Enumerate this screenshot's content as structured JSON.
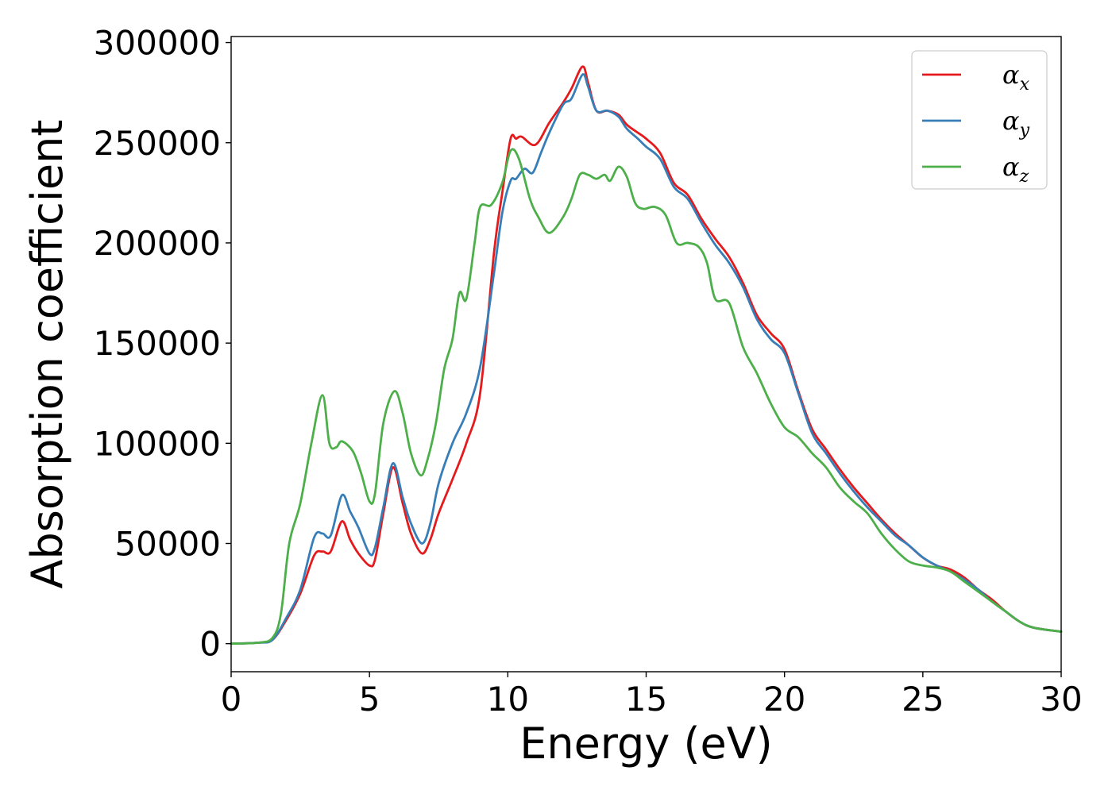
{
  "chart_data": {
    "type": "line",
    "title": "",
    "xlabel": "Energy (eV)",
    "ylabel": "Absorption coefficient",
    "xlim": [
      0,
      30
    ],
    "ylim": [
      -14000,
      303000
    ],
    "xticks": [
      0,
      5,
      10,
      15,
      20,
      25,
      30
    ],
    "yticks": [
      0,
      50000,
      100000,
      150000,
      200000,
      250000,
      300000
    ],
    "grid": false,
    "legend_position": "top-right",
    "series": [
      {
        "name": "α",
        "subscript": "x",
        "color": "#e41a1c",
        "points": [
          [
            0,
            0
          ],
          [
            1.0,
            500
          ],
          [
            1.5,
            2000
          ],
          [
            2.0,
            12000
          ],
          [
            2.5,
            25000
          ],
          [
            3.0,
            44000
          ],
          [
            3.3,
            46000
          ],
          [
            3.6,
            46000
          ],
          [
            4.0,
            61000
          ],
          [
            4.3,
            52000
          ],
          [
            4.6,
            45000
          ],
          [
            5.0,
            39000
          ],
          [
            5.2,
            42000
          ],
          [
            5.5,
            65000
          ],
          [
            5.85,
            88000
          ],
          [
            6.2,
            70000
          ],
          [
            6.5,
            55000
          ],
          [
            6.9,
            45000
          ],
          [
            7.2,
            52000
          ],
          [
            7.5,
            65000
          ],
          [
            8.0,
            82000
          ],
          [
            8.5,
            100000
          ],
          [
            9.0,
            125000
          ],
          [
            9.5,
            195000
          ],
          [
            9.8,
            225000
          ],
          [
            10.1,
            252000
          ],
          [
            10.3,
            252000
          ],
          [
            10.5,
            253000
          ],
          [
            11.0,
            249000
          ],
          [
            11.5,
            260000
          ],
          [
            12.0,
            270000
          ],
          [
            12.3,
            277000
          ],
          [
            12.7,
            288000
          ],
          [
            12.9,
            280000
          ],
          [
            13.2,
            266000
          ],
          [
            13.6,
            266000
          ],
          [
            14.0,
            264000
          ],
          [
            14.3,
            259000
          ],
          [
            14.7,
            255000
          ],
          [
            15.0,
            252000
          ],
          [
            15.5,
            245000
          ],
          [
            16.0,
            230000
          ],
          [
            16.5,
            224000
          ],
          [
            17.0,
            212000
          ],
          [
            17.5,
            202000
          ],
          [
            18.0,
            193000
          ],
          [
            18.5,
            180000
          ],
          [
            19.0,
            164000
          ],
          [
            19.5,
            155000
          ],
          [
            20.0,
            147000
          ],
          [
            20.5,
            126000
          ],
          [
            21.0,
            107000
          ],
          [
            21.5,
            97000
          ],
          [
            22.0,
            87000
          ],
          [
            22.5,
            78000
          ],
          [
            23.0,
            70000
          ],
          [
            23.5,
            62000
          ],
          [
            24.0,
            55000
          ],
          [
            24.5,
            49000
          ],
          [
            25.0,
            43000
          ],
          [
            25.5,
            39000
          ],
          [
            26.0,
            37000
          ],
          [
            26.5,
            33000
          ],
          [
            27.0,
            27000
          ],
          [
            27.5,
            22000
          ],
          [
            28.0,
            16000
          ],
          [
            28.5,
            11000
          ],
          [
            29.0,
            8000
          ],
          [
            30.0,
            6000
          ]
        ]
      },
      {
        "name": "α",
        "subscript": "y",
        "color": "#377eb8",
        "points": [
          [
            0,
            0
          ],
          [
            1.0,
            500
          ],
          [
            1.5,
            2000
          ],
          [
            2.0,
            13000
          ],
          [
            2.5,
            27000
          ],
          [
            3.0,
            53000
          ],
          [
            3.3,
            55000
          ],
          [
            3.6,
            54000
          ],
          [
            4.0,
            74000
          ],
          [
            4.3,
            66000
          ],
          [
            4.6,
            58000
          ],
          [
            5.0,
            45000
          ],
          [
            5.2,
            48000
          ],
          [
            5.5,
            68000
          ],
          [
            5.85,
            90000
          ],
          [
            6.2,
            73000
          ],
          [
            6.5,
            60000
          ],
          [
            6.9,
            50000
          ],
          [
            7.2,
            60000
          ],
          [
            7.5,
            80000
          ],
          [
            8.0,
            100000
          ],
          [
            8.5,
            115000
          ],
          [
            9.0,
            138000
          ],
          [
            9.5,
            185000
          ],
          [
            9.8,
            215000
          ],
          [
            10.1,
            231000
          ],
          [
            10.3,
            232000
          ],
          [
            10.6,
            237000
          ],
          [
            10.9,
            235000
          ],
          [
            11.2,
            245000
          ],
          [
            11.5,
            255000
          ],
          [
            12.0,
            269000
          ],
          [
            12.3,
            272000
          ],
          [
            12.7,
            284000
          ],
          [
            12.9,
            278000
          ],
          [
            13.2,
            266000
          ],
          [
            13.6,
            266000
          ],
          [
            14.0,
            263000
          ],
          [
            14.3,
            257000
          ],
          [
            14.7,
            252000
          ],
          [
            15.0,
            248000
          ],
          [
            15.5,
            242000
          ],
          [
            16.0,
            228000
          ],
          [
            16.5,
            222000
          ],
          [
            17.0,
            210000
          ],
          [
            17.5,
            199000
          ],
          [
            18.0,
            190000
          ],
          [
            18.5,
            178000
          ],
          [
            19.0,
            162000
          ],
          [
            19.5,
            152000
          ],
          [
            20.0,
            145000
          ],
          [
            20.5,
            125000
          ],
          [
            21.0,
            105000
          ],
          [
            21.5,
            95000
          ],
          [
            22.0,
            85000
          ],
          [
            22.5,
            76000
          ],
          [
            23.0,
            68000
          ],
          [
            23.5,
            61000
          ],
          [
            24.0,
            54000
          ],
          [
            24.5,
            49000
          ],
          [
            25.0,
            43000
          ],
          [
            25.5,
            39000
          ],
          [
            26.0,
            36000
          ],
          [
            26.5,
            32000
          ],
          [
            27.0,
            27000
          ],
          [
            27.5,
            21000
          ],
          [
            28.0,
            16000
          ],
          [
            28.5,
            11000
          ],
          [
            29.0,
            8000
          ],
          [
            30.0,
            6000
          ]
        ]
      },
      {
        "name": "α",
        "subscript": "z",
        "color": "#4daf4a",
        "points": [
          [
            0,
            0
          ],
          [
            1.0,
            500
          ],
          [
            1.5,
            3000
          ],
          [
            1.8,
            15000
          ],
          [
            2.1,
            50000
          ],
          [
            2.5,
            70000
          ],
          [
            2.9,
            100000
          ],
          [
            3.3,
            124000
          ],
          [
            3.55,
            100000
          ],
          [
            3.8,
            98000
          ],
          [
            4.0,
            101000
          ],
          [
            4.4,
            96000
          ],
          [
            4.7,
            85000
          ],
          [
            5.0,
            71000
          ],
          [
            5.2,
            75000
          ],
          [
            5.5,
            110000
          ],
          [
            5.9,
            126000
          ],
          [
            6.2,
            115000
          ],
          [
            6.5,
            95000
          ],
          [
            6.85,
            84000
          ],
          [
            7.1,
            92000
          ],
          [
            7.4,
            110000
          ],
          [
            7.7,
            137000
          ],
          [
            8.0,
            152000
          ],
          [
            8.25,
            175000
          ],
          [
            8.5,
            172000
          ],
          [
            8.8,
            200000
          ],
          [
            9.0,
            218000
          ],
          [
            9.4,
            219000
          ],
          [
            9.8,
            230000
          ],
          [
            10.1,
            246000
          ],
          [
            10.4,
            242000
          ],
          [
            10.8,
            222000
          ],
          [
            11.1,
            213000
          ],
          [
            11.5,
            205000
          ],
          [
            12.0,
            213000
          ],
          [
            12.3,
            222000
          ],
          [
            12.6,
            234000
          ],
          [
            12.9,
            234000
          ],
          [
            13.2,
            232000
          ],
          [
            13.5,
            234000
          ],
          [
            13.7,
            231000
          ],
          [
            14.0,
            238000
          ],
          [
            14.3,
            233000
          ],
          [
            14.6,
            220000
          ],
          [
            14.9,
            217000
          ],
          [
            15.3,
            218000
          ],
          [
            15.7,
            214000
          ],
          [
            16.1,
            200000
          ],
          [
            16.5,
            200000
          ],
          [
            16.9,
            198000
          ],
          [
            17.2,
            190000
          ],
          [
            17.5,
            172000
          ],
          [
            18.0,
            170000
          ],
          [
            18.5,
            148000
          ],
          [
            19.0,
            135000
          ],
          [
            19.5,
            120000
          ],
          [
            20.0,
            108000
          ],
          [
            20.5,
            103000
          ],
          [
            21.0,
            95000
          ],
          [
            21.5,
            88000
          ],
          [
            22.0,
            78000
          ],
          [
            22.5,
            71000
          ],
          [
            23.0,
            65000
          ],
          [
            23.5,
            55000
          ],
          [
            24.0,
            47000
          ],
          [
            24.5,
            41000
          ],
          [
            25.0,
            39000
          ],
          [
            25.5,
            38000
          ],
          [
            26.0,
            36000
          ],
          [
            26.5,
            31000
          ],
          [
            27.0,
            26000
          ],
          [
            27.5,
            21000
          ],
          [
            28.0,
            16000
          ],
          [
            28.5,
            11000
          ],
          [
            29.0,
            8000
          ],
          [
            30.0,
            6000
          ]
        ]
      }
    ]
  }
}
